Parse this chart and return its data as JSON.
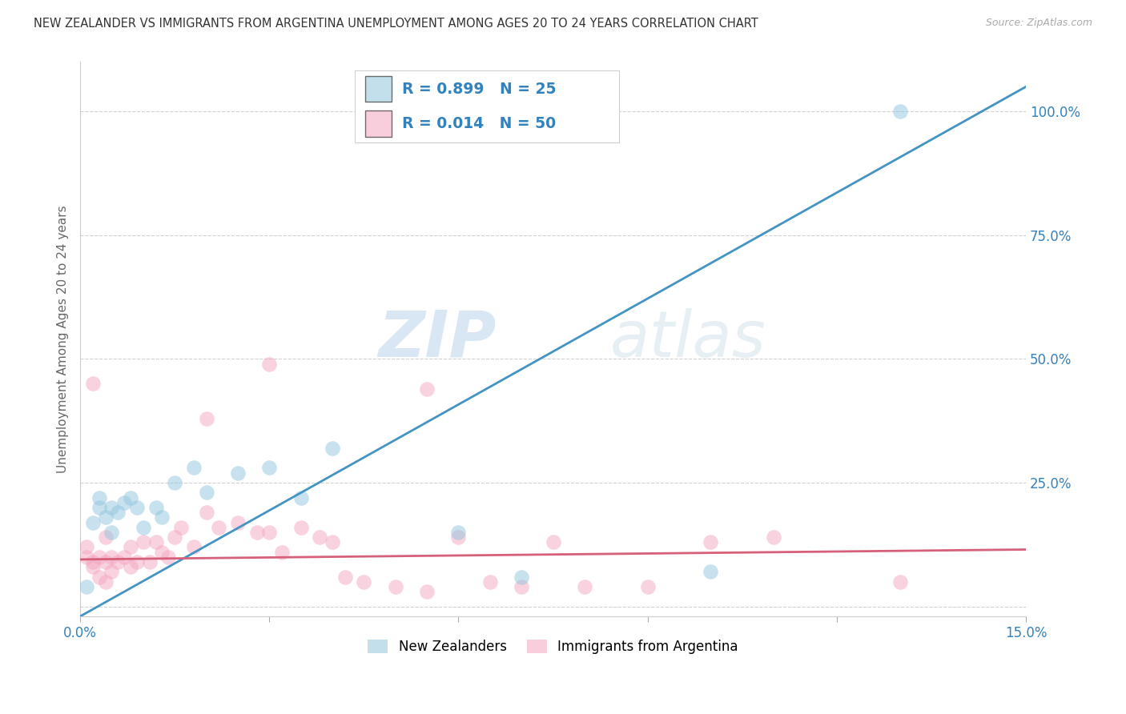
{
  "title": "NEW ZEALANDER VS IMMIGRANTS FROM ARGENTINA UNEMPLOYMENT AMONG AGES 20 TO 24 YEARS CORRELATION CHART",
  "source": "Source: ZipAtlas.com",
  "ylabel": "Unemployment Among Ages 20 to 24 years",
  "xlim": [
    0.0,
    0.15
  ],
  "ylim": [
    -0.02,
    1.1
  ],
  "yticks": [
    0.0,
    0.25,
    0.5,
    0.75,
    1.0
  ],
  "ytick_labels": [
    "",
    "25.0%",
    "50.0%",
    "75.0%",
    "100.0%"
  ],
  "xticks": [
    0.0,
    0.03,
    0.06,
    0.09,
    0.12,
    0.15
  ],
  "xtick_labels": [
    "0.0%",
    "",
    "",
    "",
    "",
    "15.0%"
  ],
  "background_color": "#ffffff",
  "grid_color": "#cccccc",
  "watermark_zip": "ZIP",
  "watermark_atlas": "atlas",
  "blue_color": "#92c5de",
  "pink_color": "#f4a6c0",
  "blue_line_color": "#4393c3",
  "pink_line_color": "#d6607a",
  "legend_color": "#3182bd",
  "nz_R": 0.899,
  "nz_N": 25,
  "arg_R": 0.014,
  "arg_N": 50,
  "blue_line_x": [
    0.0,
    0.15
  ],
  "blue_line_y": [
    -0.02,
    1.05
  ],
  "pink_line_x": [
    0.0,
    0.15
  ],
  "pink_line_y": [
    0.095,
    0.115
  ],
  "nz_scatter_x": [
    0.001,
    0.002,
    0.003,
    0.003,
    0.004,
    0.005,
    0.005,
    0.006,
    0.007,
    0.008,
    0.009,
    0.01,
    0.012,
    0.013,
    0.015,
    0.018,
    0.02,
    0.025,
    0.03,
    0.035,
    0.04,
    0.06,
    0.07,
    0.1,
    0.13
  ],
  "nz_scatter_y": [
    0.04,
    0.17,
    0.2,
    0.22,
    0.18,
    0.15,
    0.2,
    0.19,
    0.21,
    0.22,
    0.2,
    0.16,
    0.2,
    0.18,
    0.25,
    0.28,
    0.23,
    0.27,
    0.28,
    0.22,
    0.32,
    0.15,
    0.06,
    0.07,
    1.0
  ],
  "arg_scatter_x": [
    0.001,
    0.001,
    0.002,
    0.002,
    0.003,
    0.003,
    0.004,
    0.004,
    0.005,
    0.005,
    0.006,
    0.007,
    0.008,
    0.008,
    0.009,
    0.01,
    0.011,
    0.012,
    0.013,
    0.014,
    0.015,
    0.016,
    0.018,
    0.02,
    0.022,
    0.025,
    0.028,
    0.03,
    0.032,
    0.035,
    0.038,
    0.04,
    0.042,
    0.045,
    0.05,
    0.055,
    0.06,
    0.065,
    0.07,
    0.075,
    0.08,
    0.09,
    0.1,
    0.11,
    0.13,
    0.03,
    0.055,
    0.02,
    0.004,
    0.002
  ],
  "arg_scatter_y": [
    0.1,
    0.12,
    0.08,
    0.09,
    0.06,
    0.1,
    0.05,
    0.09,
    0.07,
    0.1,
    0.09,
    0.1,
    0.08,
    0.12,
    0.09,
    0.13,
    0.09,
    0.13,
    0.11,
    0.1,
    0.14,
    0.16,
    0.12,
    0.38,
    0.16,
    0.17,
    0.15,
    0.15,
    0.11,
    0.16,
    0.14,
    0.13,
    0.06,
    0.05,
    0.04,
    0.03,
    0.14,
    0.05,
    0.04,
    0.13,
    0.04,
    0.04,
    0.13,
    0.14,
    0.05,
    0.49,
    0.44,
    0.19,
    0.14,
    0.45
  ]
}
